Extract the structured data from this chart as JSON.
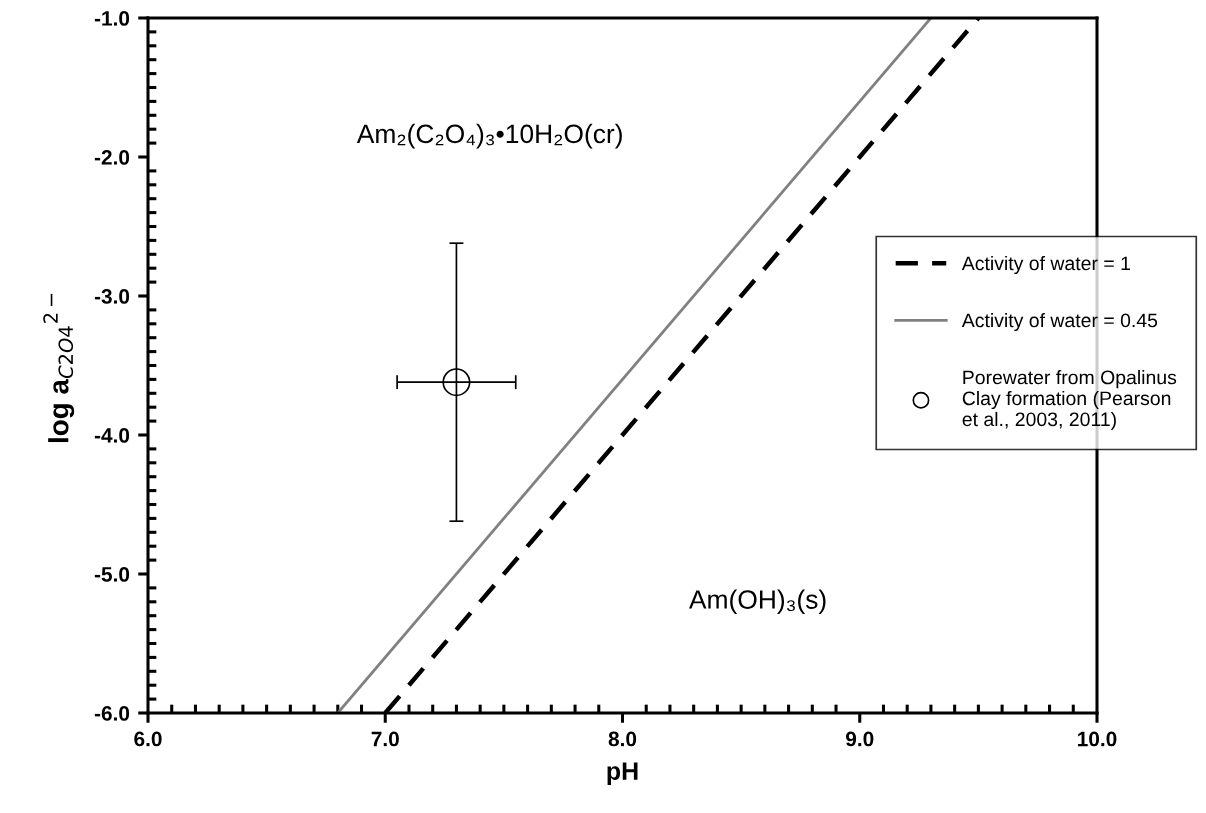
{
  "chart_data": {
    "type": "line",
    "xlabel": "pH",
    "ylabel": "log a$_{C2O4}$$^{2−}$",
    "xlim": [
      6.0,
      10.0
    ],
    "ylim": [
      -6.0,
      -1.0
    ],
    "xticks": [
      {
        "value": 6,
        "label": "6.0"
      },
      {
        "value": 7,
        "label": "7.0"
      },
      {
        "value": 8,
        "label": "8.0"
      },
      {
        "value": 9,
        "label": "9.0"
      },
      {
        "value": 10,
        "label": "10.0"
      }
    ],
    "yticks": [
      {
        "value": -6,
        "label": "-6.0"
      },
      {
        "value": -5,
        "label": "-5.0"
      },
      {
        "value": -4,
        "label": "-4.0"
      },
      {
        "value": -3,
        "label": "-3.0"
      },
      {
        "value": -2,
        "label": "-2.0"
      },
      {
        "value": -1,
        "label": "-1.0"
      }
    ],
    "grid": false,
    "legend": "right",
    "series": [
      {
        "name": "Activity of water = 1",
        "color": "#000000",
        "line_style": "dashed",
        "x": [
          7.0,
          9.5
        ],
        "values": [
          -6.0,
          -1.0
        ]
      },
      {
        "name": "Activity of water = 0.45",
        "color": "#808080",
        "line_style": "solid",
        "x": [
          6.8,
          9.3
        ],
        "values": [
          -6.0,
          -1.0
        ]
      },
      {
        "name": "Porewater from Opalinus\nClay formation (Pearson\net al., 2003, 2011)",
        "type": "scatter",
        "color": "#000000",
        "marker": "circle",
        "x": [
          7.3
        ],
        "values": [
          -3.62
        ],
        "errors": [
          1.0
        ],
        "xerrors": [
          0.25
        ]
      }
    ],
    "annotations": [
      "Am₂(C₂O₄)₃•10H₂O(cr)",
      "Am(OH)₃(s)"
    ]
  }
}
